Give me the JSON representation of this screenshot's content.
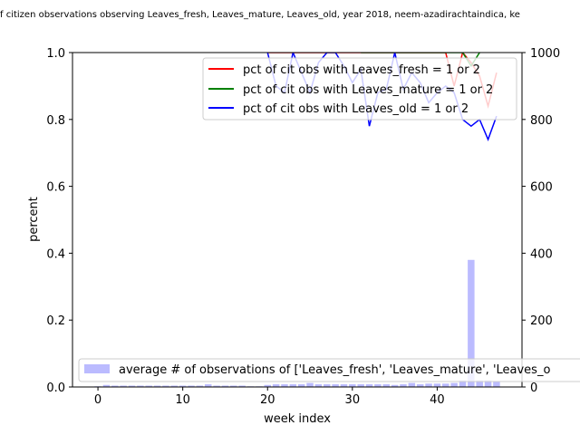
{
  "chart_data": {
    "type": "line",
    "title": "f citizen observations observing Leaves_fresh, Leaves_mature, Leaves_old, year 2018, neem-azadirachtaindica, ke",
    "xlabel": "week index",
    "ylabel": "percent",
    "xlim": [
      -3,
      50
    ],
    "ylim": [
      0,
      1.0
    ],
    "y2lim": [
      0,
      1000
    ],
    "x_ticks": [
      "0",
      "10",
      "20",
      "30",
      "40"
    ],
    "y_ticks": [
      "0.0",
      "0.2",
      "0.4",
      "0.6",
      "0.8",
      "1.0"
    ],
    "y2_ticks": [
      "0",
      "200",
      "400",
      "600",
      "800",
      "1000"
    ],
    "legend_top": {
      "position": "upper right",
      "entries": [
        {
          "label": "pct of cit obs with Leaves_fresh = 1 or 2",
          "color": "#ff0000"
        },
        {
          "label": "pct of cit obs with Leaves_mature = 1 or 2",
          "color": "#008000"
        },
        {
          "label": "pct of cit obs with Leaves_old = 1 or 2",
          "color": "#0000ff"
        }
      ]
    },
    "legend_bottom": {
      "position": "lower left",
      "entries": [
        {
          "label": "average # of observations of ['Leaves_fresh', 'Leaves_mature', 'Leaves_o",
          "color": "#bbbbff"
        }
      ]
    },
    "series": [
      {
        "name": "pct of cit obs with Leaves_fresh = 1 or 2",
        "color": "#ff0000",
        "x": [
          20,
          21,
          22,
          23,
          24,
          25,
          26,
          27,
          28,
          29,
          30,
          31,
          32,
          33,
          34,
          35,
          36,
          37,
          38,
          39,
          40,
          41,
          42,
          43,
          44,
          45,
          46,
          47
        ],
        "y": [
          1.0,
          1.0,
          1.0,
          1.0,
          1.0,
          1.0,
          1.0,
          1.0,
          1.0,
          1.0,
          1.0,
          1.0,
          1.0,
          1.0,
          1.0,
          1.0,
          1.0,
          1.0,
          1.0,
          1.0,
          1.0,
          1.0,
          0.9,
          1.0,
          0.97,
          0.93,
          0.84,
          0.94
        ]
      },
      {
        "name": "pct of cit obs with Leaves_mature = 1 or 2",
        "color": "#008000",
        "x": [
          31,
          32,
          33,
          34,
          35,
          36,
          37,
          38,
          39,
          40,
          41,
          42,
          43,
          44,
          45
        ],
        "y": [
          1.0,
          1.0,
          1.0,
          1.0,
          1.0,
          1.0,
          1.0,
          1.0,
          1.0,
          1.0,
          1.0,
          1.0,
          1.0,
          0.96,
          1.0
        ]
      },
      {
        "name": "pct of cit obs with Leaves_old = 1 or 2",
        "color": "#0000ff",
        "x": [
          20,
          21,
          22,
          23,
          24,
          25,
          26,
          27,
          28,
          29,
          30,
          31,
          32,
          33,
          34,
          35,
          36,
          37,
          38,
          39,
          40,
          41,
          42,
          43,
          44,
          45,
          46,
          47
        ],
        "y": [
          1.0,
          0.9,
          0.88,
          1.0,
          0.94,
          0.88,
          0.97,
          1.0,
          1.0,
          0.96,
          0.91,
          0.95,
          0.78,
          0.88,
          0.89,
          1.0,
          0.89,
          0.94,
          0.91,
          0.85,
          0.88,
          0.9,
          0.88,
          0.8,
          0.78,
          0.8,
          0.74,
          0.81
        ]
      },
      {
        "name": "average # of observations of ['Leaves_fresh', 'Leaves_mature', 'Leaves_o",
        "type": "bar",
        "axis": "right",
        "color": "#bbbbff",
        "x": [
          0,
          1,
          2,
          3,
          4,
          5,
          6,
          7,
          8,
          9,
          10,
          11,
          12,
          13,
          14,
          15,
          16,
          17,
          18,
          19,
          20,
          21,
          22,
          23,
          24,
          25,
          26,
          27,
          28,
          29,
          30,
          31,
          32,
          33,
          34,
          35,
          36,
          37,
          38,
          39,
          40,
          41,
          42,
          43,
          44,
          45,
          46,
          47
        ],
        "y": [
          2,
          6,
          4,
          4,
          4,
          4,
          4,
          4,
          4,
          4,
          4,
          4,
          4,
          8,
          4,
          4,
          4,
          4,
          2,
          2,
          6,
          8,
          8,
          8,
          8,
          12,
          8,
          8,
          8,
          8,
          8,
          8,
          8,
          8,
          8,
          6,
          8,
          12,
          8,
          10,
          10,
          10,
          12,
          20,
          380,
          20,
          20,
          16
        ]
      }
    ]
  }
}
